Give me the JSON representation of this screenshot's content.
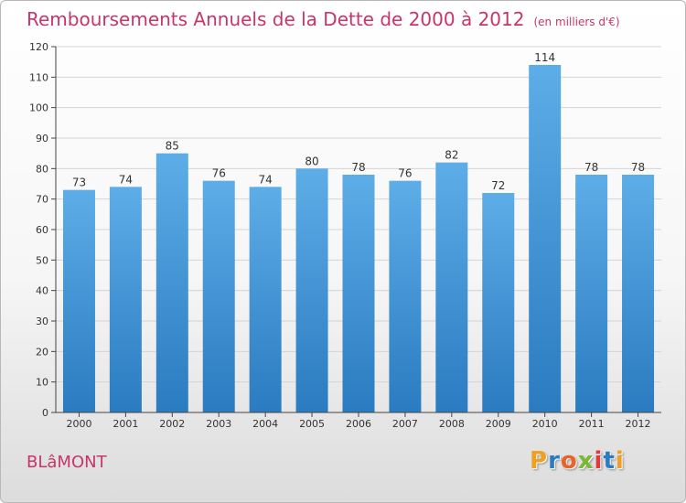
{
  "header": {
    "title": "Remboursements Annuels de la Dette de 2000 à 2012",
    "subtitle": "(en milliers d'€)"
  },
  "footer": {
    "city": "BLâMONT",
    "brand": "Proxiti"
  },
  "colors": {
    "title": "#c8356a",
    "bar_top": "#5dade8",
    "bar_bottom": "#2a7bc0",
    "logo_letters": [
      "#f0a020",
      "#2a7bc0",
      "#e8632a",
      "#7ab830",
      "#e23a3a",
      "#2a7bc0",
      "#f0a020"
    ]
  },
  "chart_data": {
    "type": "bar",
    "categories": [
      "2000",
      "2001",
      "2002",
      "2003",
      "2004",
      "2005",
      "2006",
      "2007",
      "2008",
      "2009",
      "2010",
      "2011",
      "2012"
    ],
    "values": [
      73,
      74,
      85,
      76,
      74,
      80,
      78,
      76,
      82,
      72,
      114,
      78,
      78
    ],
    "data_labels": [
      "73",
      "74",
      "85",
      "76",
      "74",
      "80",
      "78",
      "76",
      "82",
      "72",
      "114",
      "78",
      "78"
    ],
    "yticks": [
      0,
      10,
      20,
      30,
      40,
      50,
      60,
      70,
      80,
      90,
      100,
      110,
      120
    ],
    "ylim": [
      0,
      120
    ],
    "grid": true,
    "legend": "none"
  }
}
